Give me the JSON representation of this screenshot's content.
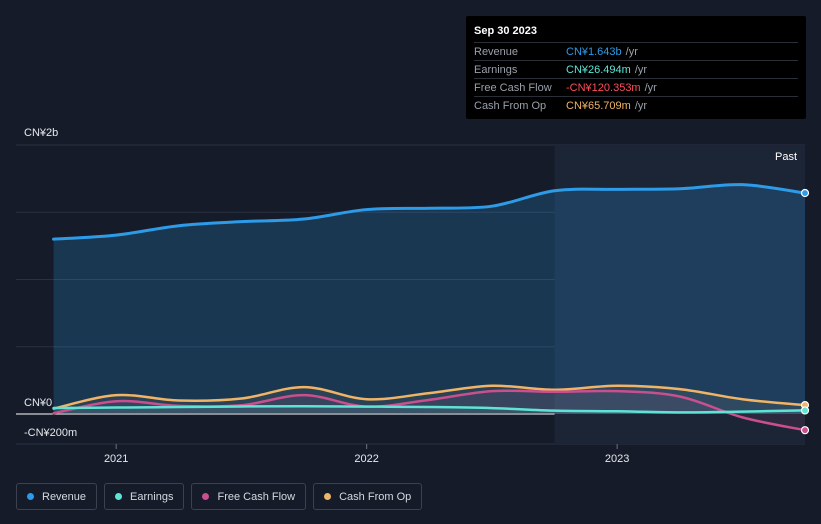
{
  "tooltip": {
    "date": "Sep 30 2023",
    "rows": [
      {
        "name": "Revenue",
        "value": "CN¥1.643b",
        "unit": "/yr",
        "color": "#2d9be8"
      },
      {
        "name": "Earnings",
        "value": "CN¥26.494m",
        "unit": "/yr",
        "color": "#5fe3d4"
      },
      {
        "name": "Free Cash Flow",
        "value": "-CN¥120.353m",
        "unit": "/yr",
        "color": "#ff4d5a"
      },
      {
        "name": "Cash From Op",
        "value": "CN¥65.709m",
        "unit": "/yr",
        "color": "#f0b466"
      }
    ]
  },
  "legend": [
    {
      "label": "Revenue",
      "color": "#2d9be8"
    },
    {
      "label": "Earnings",
      "color": "#5fe3d4"
    },
    {
      "label": "Free Cash Flow",
      "color": "#c94f8e"
    },
    {
      "label": "Cash From Op",
      "color": "#f0b466"
    }
  ],
  "chart_data": {
    "type": "line",
    "y_axis_labels": [
      "CN¥2b",
      "CN¥0",
      "-CN¥200m"
    ],
    "ylim": [
      -200,
      2000
    ],
    "y_unit": "CN¥ millions",
    "x_ticks": [
      {
        "label": "2021",
        "x": 2021.0
      },
      {
        "label": "2022",
        "x": 2022.0
      },
      {
        "label": "2023",
        "x": 2023.0
      }
    ],
    "xlim": [
      2020.6,
      2023.75
    ],
    "past_label": "Past",
    "past_start": 2022.75,
    "grid": true,
    "series": [
      {
        "name": "Revenue",
        "color": "#2d9be8",
        "fill": true,
        "points": [
          [
            2020.75,
            1300
          ],
          [
            2021.0,
            1330
          ],
          [
            2021.25,
            1400
          ],
          [
            2021.5,
            1430
          ],
          [
            2021.75,
            1450
          ],
          [
            2022.0,
            1520
          ],
          [
            2022.25,
            1530
          ],
          [
            2022.5,
            1545
          ],
          [
            2022.75,
            1660
          ],
          [
            2023.0,
            1670
          ],
          [
            2023.25,
            1675
          ],
          [
            2023.5,
            1705
          ],
          [
            2023.75,
            1643
          ]
        ]
      },
      {
        "name": "Earnings",
        "color": "#5fe3d4",
        "fill": false,
        "points": [
          [
            2020.75,
            45
          ],
          [
            2021.0,
            48
          ],
          [
            2021.25,
            52
          ],
          [
            2021.5,
            56
          ],
          [
            2021.75,
            58
          ],
          [
            2022.0,
            55
          ],
          [
            2022.25,
            52
          ],
          [
            2022.5,
            44
          ],
          [
            2022.75,
            25
          ],
          [
            2023.0,
            20
          ],
          [
            2023.25,
            12
          ],
          [
            2023.5,
            18
          ],
          [
            2023.75,
            26.494
          ]
        ]
      },
      {
        "name": "Free Cash Flow",
        "color": "#c94f8e",
        "fill": false,
        "points": [
          [
            2020.75,
            5
          ],
          [
            2021.0,
            95
          ],
          [
            2021.25,
            60
          ],
          [
            2021.5,
            65
          ],
          [
            2021.75,
            140
          ],
          [
            2022.0,
            55
          ],
          [
            2022.25,
            105
          ],
          [
            2022.5,
            170
          ],
          [
            2022.75,
            165
          ],
          [
            2023.0,
            170
          ],
          [
            2023.25,
            130
          ],
          [
            2023.5,
            -25
          ],
          [
            2023.75,
            -120.353
          ]
        ]
      },
      {
        "name": "Cash From Op",
        "color": "#f0b466",
        "fill": false,
        "points": [
          [
            2020.75,
            40
          ],
          [
            2021.0,
            140
          ],
          [
            2021.25,
            100
          ],
          [
            2021.5,
            115
          ],
          [
            2021.75,
            200
          ],
          [
            2022.0,
            110
          ],
          [
            2022.25,
            155
          ],
          [
            2022.5,
            210
          ],
          [
            2022.75,
            180
          ],
          [
            2023.0,
            210
          ],
          [
            2023.25,
            185
          ],
          [
            2023.5,
            110
          ],
          [
            2023.75,
            65.709
          ]
        ]
      }
    ]
  }
}
